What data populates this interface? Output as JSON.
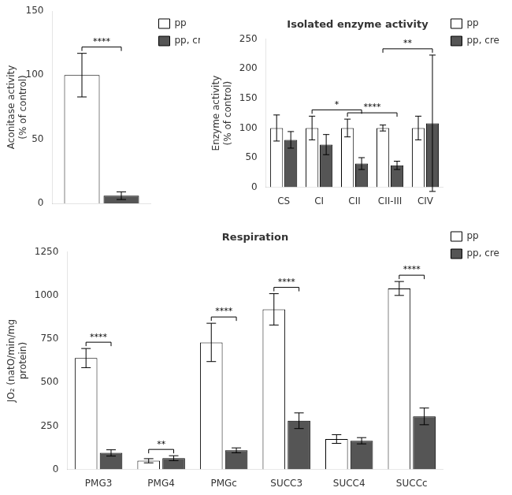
{
  "chart_data": [
    {
      "type": "bar",
      "categories": [
        null
      ],
      "series": [
        {
          "name": "pp",
          "color": "white",
          "values": [
            100
          ],
          "errors": [
            17
          ]
        },
        {
          "name": "pp, cre",
          "color": "#555555",
          "values": [
            6
          ],
          "errors": [
            3
          ]
        }
      ],
      "ylabel": "Aconitase activity\n(% of control)",
      "ylim": [
        0,
        150
      ],
      "yticks": [
        0,
        50,
        100,
        150
      ],
      "grid": false,
      "legend": "right",
      "tick_labels": "y",
      "annotations": [
        {
          "text": "****",
          "from": "pp",
          "to": "pp, cre"
        }
      ]
    },
    {
      "type": "bar",
      "title": "Respiration",
      "categories": [
        "PMG3",
        "PMG4",
        "PMGc",
        "SUCC3",
        "SUCC4",
        "SUCCc"
      ],
      "series": [
        {
          "name": "pp",
          "color": "white",
          "values": [
            640,
            50,
            730,
            920,
            175,
            1040
          ],
          "errors": [
            55,
            12,
            110,
            90,
            25,
            40
          ]
        },
        {
          "name": "pp, cre",
          "color": "#555555",
          "values": [
            95,
            65,
            110,
            280,
            165,
            305
          ],
          "errors": [
            18,
            14,
            14,
            45,
            18,
            48
          ]
        }
      ],
      "ylabel": "JO₂ (natO/min/mg\nprotein)",
      "ylim": [
        0,
        1250
      ],
      "yticks": [
        0,
        250,
        500,
        750,
        1000,
        1250
      ],
      "grid": false,
      "legend": "right",
      "annotations": [
        {
          "text": "****",
          "category": "PMG3"
        },
        {
          "text": "**",
          "category": "PMG4"
        },
        {
          "text": "****",
          "category": "PMGc"
        },
        {
          "text": "****",
          "category": "SUCC3"
        },
        {
          "text": "****",
          "category": "SUCCc"
        }
      ]
    },
    {
      "type": "bar",
      "title": "Isolated enzyme activity",
      "categories": [
        "CS",
        "CI",
        "CII",
        "CII-III",
        "CIV"
      ],
      "series": [
        {
          "name": "pp",
          "color": "white",
          "values": [
            100,
            100,
            100,
            100,
            100
          ],
          "errors": [
            22,
            20,
            15,
            5,
            20
          ]
        },
        {
          "name": "pp, cre",
          "color": "#555555",
          "values": [
            80,
            72,
            40,
            37,
            108
          ],
          "errors": [
            14,
            17,
            10,
            7,
            115
          ]
        }
      ],
      "ylabel": "Enzyme activity\n(% of control)",
      "ylim": [
        0,
        250
      ],
      "yticks": [
        0,
        50,
        100,
        150,
        200,
        250
      ],
      "grid": false,
      "legend": "right",
      "annotations": [
        {
          "text": "*",
          "from": "CI",
          "to": "CII"
        },
        {
          "text": "****",
          "from": "CII",
          "to": "CII-III"
        },
        {
          "text": "**",
          "from": "CII-III",
          "to": "CIV"
        }
      ]
    }
  ]
}
